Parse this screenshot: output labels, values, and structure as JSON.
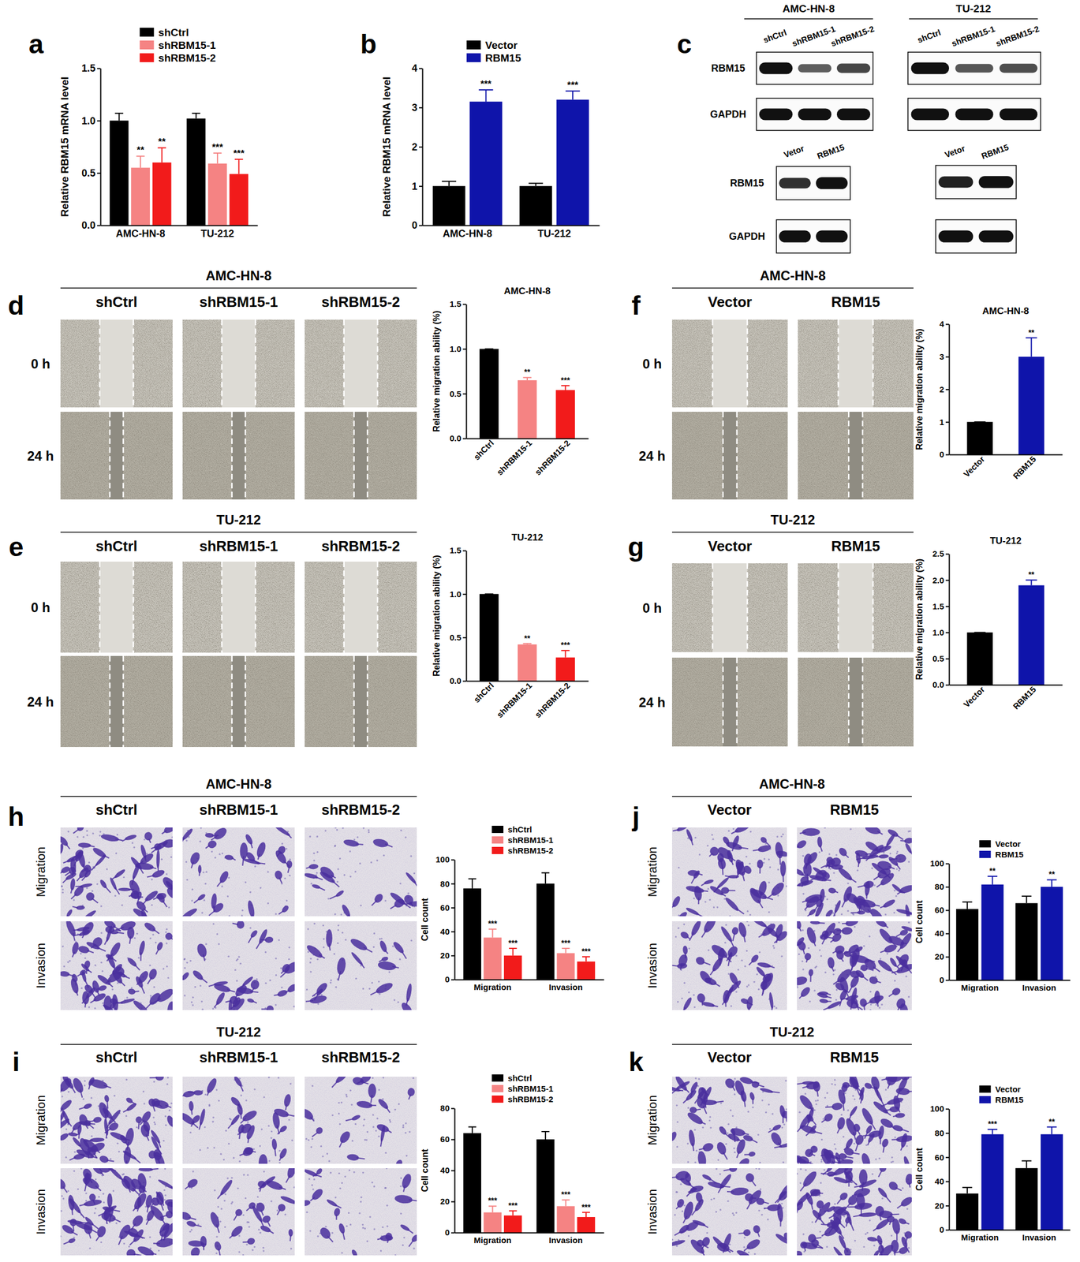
{
  "chart_data": [
    {
      "type": "bar",
      "panel_label": "a",
      "y_label": "Relative RBM15 mRNA level",
      "categories": [
        "AMC-HN-8",
        "TU-212"
      ],
      "series": [
        {
          "name": "shCtrl",
          "color": "#000000",
          "values": [
            1.0,
            1.02
          ],
          "errors": [
            0.07,
            0.05
          ]
        },
        {
          "name": "shRBM15-1",
          "color": "#f58383",
          "values": [
            0.55,
            0.59
          ],
          "errors": [
            0.11,
            0.1
          ],
          "annotations": [
            "**",
            "***"
          ]
        },
        {
          "name": "shRBM15-2",
          "color": "#f21b1b",
          "values": [
            0.6,
            0.49
          ],
          "errors": [
            0.14,
            0.14
          ],
          "annotations": [
            "**",
            "***"
          ]
        }
      ],
      "ylim": [
        0,
        1.5
      ],
      "yticks": [
        {
          "value": 0,
          "label": "0.0"
        },
        0.5,
        {
          "value": 1,
          "label": "1.0"
        },
        1.5
      ],
      "legend": "top"
    },
    {
      "type": "bar",
      "panel_label": "b",
      "y_label": "Relative RBM15 mRNA level",
      "categories": [
        "AMC-HN-8",
        "TU-212"
      ],
      "series": [
        {
          "name": "Vector",
          "color": "#000000",
          "values": [
            1.0,
            1.0
          ],
          "errors": [
            0.12,
            0.07
          ]
        },
        {
          "name": "RBM15",
          "color": "#0f14aa",
          "values": [
            3.15,
            3.2
          ],
          "errors": [
            0.3,
            0.22
          ],
          "annotations": [
            "***",
            "***"
          ]
        }
      ],
      "ylim": [
        0,
        4
      ],
      "yticks": [
        0,
        1,
        2,
        3,
        4
      ],
      "legend": "top"
    },
    {
      "type": "bar",
      "title": "AMC-HN-8",
      "y_label": "Relative migration ability (%)",
      "categories": [
        "shCtrl",
        "shRBM15-1",
        "shRBM15-2"
      ],
      "values": [
        1.0,
        0.65,
        0.54
      ],
      "errors": [
        0,
        0.03,
        0.05
      ],
      "annotations": [
        null,
        "**",
        "***"
      ],
      "colors": [
        "#000000",
        "#f58383",
        "#f21b1b"
      ],
      "ylim": [
        0,
        1.5
      ],
      "yticks": [
        {
          "value": 0,
          "label": "0.0"
        },
        0.5,
        {
          "value": 1,
          "label": "1.0"
        },
        1.5
      ]
    },
    {
      "type": "bar",
      "title": "TU-212",
      "y_label": "Relative migration ability (%)",
      "categories": [
        "shCtrl",
        "shRBM15-1",
        "shRBM15-2"
      ],
      "values": [
        1.0,
        0.42,
        0.27
      ],
      "errors": [
        0,
        0.01,
        0.08
      ],
      "annotations": [
        null,
        "**",
        "***"
      ],
      "colors": [
        "#000000",
        "#f58383",
        "#f21b1b"
      ],
      "ylim": [
        0,
        1.5
      ],
      "yticks": [
        {
          "value": 0,
          "label": "0.0"
        },
        0.5,
        {
          "value": 1,
          "label": "1.0"
        },
        1.5
      ]
    },
    {
      "type": "bar",
      "title": "AMC-HN-8",
      "y_label": "Relative migration ability (%)",
      "categories": [
        "Vector",
        "RBM15"
      ],
      "values": [
        1,
        3.0
      ],
      "errors": [
        0,
        0.58
      ],
      "annotations": [
        null,
        "**"
      ],
      "colors": [
        "#000000",
        "#0f14aa"
      ],
      "ylim": [
        0,
        4
      ],
      "yticks": [
        0,
        1,
        2,
        3,
        4
      ]
    },
    {
      "type": "bar",
      "title": "TU-212",
      "y_label": "Relative migration ability (%)",
      "categories": [
        "Vector",
        "RBM15"
      ],
      "values": [
        1,
        1.9
      ],
      "errors": [
        0,
        0.1
      ],
      "annotations": [
        null,
        "**"
      ],
      "colors": [
        "#000000",
        "#0f14aa"
      ],
      "ylim": [
        0,
        2.5
      ],
      "yticks": [
        {
          "value": 0,
          "label": "0.0"
        },
        0.5,
        {
          "value": 1,
          "label": "1.0"
        },
        1.5,
        {
          "value": 2,
          "label": "2.0"
        },
        2.5
      ]
    },
    {
      "type": "bar",
      "y_label": "Cell count",
      "categories": [
        "Migration",
        "Invasion"
      ],
      "series": [
        {
          "name": "shCtrl",
          "color": "#000000",
          "values": [
            76,
            80
          ],
          "errors": [
            8,
            9
          ]
        },
        {
          "name": "shRBM15-1",
          "color": "#f58383",
          "values": [
            35,
            22
          ],
          "errors": [
            7,
            4
          ],
          "annotations": [
            "***",
            "***"
          ]
        },
        {
          "name": "shRBM15-2",
          "color": "#f21b1b",
          "values": [
            20,
            15
          ],
          "errors": [
            6,
            4
          ],
          "annotations": [
            "***",
            "***"
          ]
        }
      ],
      "ylim": [
        0,
        100
      ],
      "yticks": [
        0,
        20,
        40,
        60,
        80,
        100
      ],
      "legend": "top"
    },
    {
      "type": "bar",
      "y_label": "Cell count",
      "categories": [
        "Migration",
        "Invasion"
      ],
      "series": [
        {
          "name": "shCtrl",
          "color": "#000000",
          "values": [
            64,
            60
          ],
          "errors": [
            4,
            5
          ]
        },
        {
          "name": "shRBM15-1",
          "color": "#f58383",
          "values": [
            13,
            17
          ],
          "errors": [
            4,
            4
          ],
          "annotations": [
            "***",
            "***"
          ]
        },
        {
          "name": "shRBM15-2",
          "color": "#f21b1b",
          "values": [
            11,
            10
          ],
          "errors": [
            3,
            3
          ],
          "annotations": [
            "***",
            "***"
          ]
        }
      ],
      "ylim": [
        0,
        80
      ],
      "yticks": [
        0,
        20,
        40,
        60,
        80
      ],
      "legend": "top"
    },
    {
      "type": "bar",
      "y_label": "Cell count",
      "categories": [
        "Migration",
        "Invasion"
      ],
      "series": [
        {
          "name": "Vector",
          "color": "#000000",
          "values": [
            61,
            66
          ],
          "errors": [
            6,
            6
          ]
        },
        {
          "name": "RBM15",
          "color": "#0f14aa",
          "values": [
            82,
            80
          ],
          "errors": [
            7,
            6
          ],
          "annotations": [
            "**",
            "**"
          ]
        }
      ],
      "ylim": [
        0,
        100
      ],
      "yticks": [
        0,
        20,
        40,
        60,
        80,
        100
      ],
      "legend": "top"
    },
    {
      "type": "bar",
      "y_label": "Cell count",
      "categories": [
        "Migration",
        "Invasion"
      ],
      "series": [
        {
          "name": "Vector",
          "color": "#000000",
          "values": [
            30,
            51
          ],
          "errors": [
            5,
            6
          ]
        },
        {
          "name": "RBM15",
          "color": "#0f14aa",
          "values": [
            79,
            79
          ],
          "errors": [
            4,
            6
          ],
          "annotations": [
            "***",
            "**"
          ]
        }
      ],
      "ylim": [
        0,
        100
      ],
      "yticks": [
        0,
        20,
        40,
        60,
        80,
        100
      ],
      "legend": "top"
    }
  ],
  "figure": {
    "c": {
      "panel_label": "c",
      "blots": [
        {
          "title": "AMC-HN-8",
          "lanes": [
            "shCtrl",
            "shRBM15-1",
            "shRBM15-2"
          ],
          "rows": [
            {
              "name": "RBM15",
              "intensity": [
                1,
                0.5,
                0.65
              ]
            },
            {
              "name": "GAPDH",
              "intensity": [
                1,
                1,
                1
              ]
            }
          ]
        },
        {
          "title": "TU-212",
          "lanes": [
            "shCtrl",
            "shRBM15-1",
            "shRBM15-2"
          ],
          "rows": [
            {
              "intensity": [
                1,
                0.55,
                0.6
              ]
            },
            {
              "intensity": [
                1,
                1,
                1
              ]
            }
          ]
        },
        {
          "lanes": [
            "Vetor",
            "RBM15"
          ],
          "rows": [
            {
              "name": "RBM15",
              "intensity": [
                0.8,
                1
              ]
            },
            {
              "name": "GAPDH",
              "intensity": [
                1,
                1
              ]
            }
          ]
        },
        {
          "lanes": [
            "Vetor",
            "RBM15"
          ],
          "rows": [
            {
              "intensity": [
                0.9,
                1
              ]
            },
            {
              "intensity": [
                1,
                1
              ]
            }
          ]
        }
      ]
    },
    "image_panels": [
      {
        "panel_label": "d",
        "title": "AMC-HN-8",
        "type": "scratch",
        "columns": [
          "shCtrl",
          "shRBM15-1",
          "shRBM15-2"
        ],
        "rows": [
          "0 h",
          "24 h"
        ]
      },
      {
        "panel_label": "e",
        "title": "TU-212",
        "type": "scratch",
        "columns": [
          "shCtrl",
          "shRBM15-1",
          "shRBM15-2"
        ],
        "rows": [
          "0 h",
          "24 h"
        ]
      },
      {
        "panel_label": "f",
        "title": "AMC-HN-8",
        "type": "scratch",
        "columns": [
          "Vector",
          "RBM15"
        ],
        "rows": [
          "0 h",
          "24 h"
        ]
      },
      {
        "panel_label": "g",
        "title": "TU-212",
        "type": "scratch",
        "columns": [
          "Vector",
          "RBM15"
        ],
        "rows": [
          "0 h",
          "24 h"
        ]
      },
      {
        "panel_label": "h",
        "title": "AMC-HN-8",
        "type": "transwell",
        "columns": [
          "shCtrl",
          "shRBM15-1",
          "shRBM15-2"
        ],
        "rows": [
          "Migration",
          "Invasion"
        ]
      },
      {
        "panel_label": "i",
        "title": "TU-212",
        "type": "transwell",
        "columns": [
          "shCtrl",
          "shRBM15-1",
          "shRBM15-2"
        ],
        "rows": [
          "Migration",
          "Invasion"
        ]
      },
      {
        "panel_label": "j",
        "title": "AMC-HN-8",
        "type": "transwell",
        "columns": [
          "Vector",
          "RBM15"
        ],
        "rows": [
          "Migration",
          "Invasion"
        ]
      },
      {
        "panel_label": "k",
        "title": "TU-212",
        "type": "transwell",
        "columns": [
          "Vector",
          "RBM15"
        ],
        "rows": [
          "Migration",
          "Invasion"
        ]
      }
    ]
  }
}
